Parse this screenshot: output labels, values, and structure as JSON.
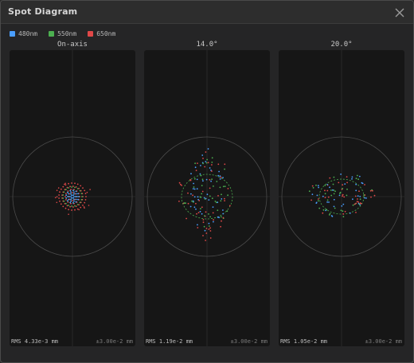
{
  "window": {
    "title": "Spot Diagram"
  },
  "legend": [
    {
      "label": "480nm",
      "color": "#4a9eff"
    },
    {
      "label": "550nm",
      "color": "#4caf50"
    },
    {
      "label": "650nm",
      "color": "#e04848"
    }
  ],
  "panels": [
    {
      "title": "On-axis",
      "rms": "RMS 4.33e-3 mm",
      "scale": "±3.00e-2 mm"
    },
    {
      "title": "14.0°",
      "rms": "RMS 1.19e-2 mm",
      "scale": "±3.00e-2 mm"
    },
    {
      "title": "20.0°",
      "rms": "RMS 1.05e-2 mm",
      "scale": "±3.00e-2 mm"
    }
  ],
  "icons": {
    "close": "close-icon"
  }
}
